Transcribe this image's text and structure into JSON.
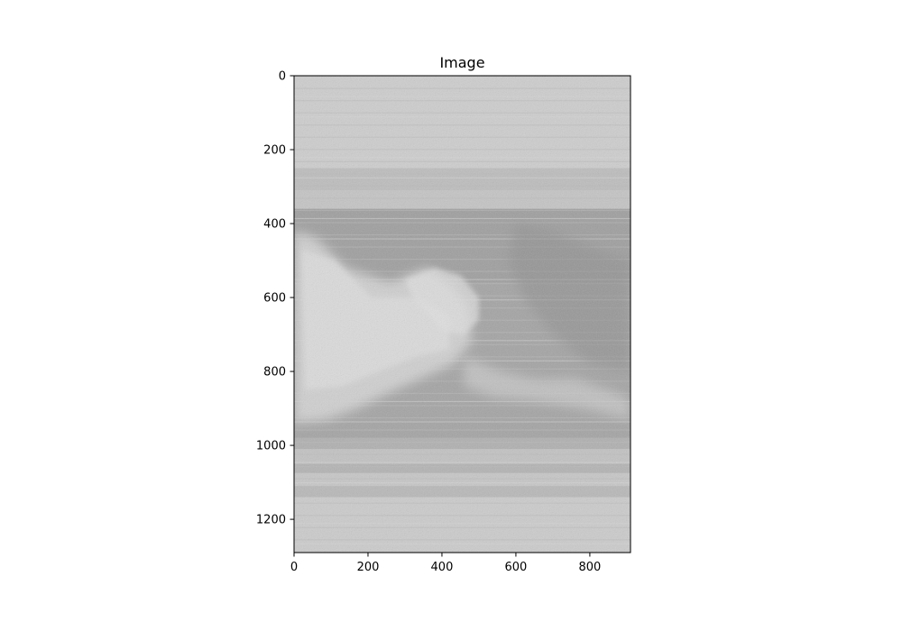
{
  "chart_data": {
    "type": "heatmap",
    "title": "Image",
    "colormap": "gray",
    "image_extent": {
      "x": [
        0,
        910
      ],
      "y": [
        0,
        1290
      ]
    },
    "xlim": [
      0,
      910
    ],
    "ylim": [
      1290,
      0
    ],
    "y_inverted": true,
    "x_ticks": [
      0,
      200,
      400,
      600,
      800
    ],
    "y_ticks": [
      0,
      200,
      400,
      600,
      800,
      1000,
      1200
    ],
    "grid": false
  }
}
